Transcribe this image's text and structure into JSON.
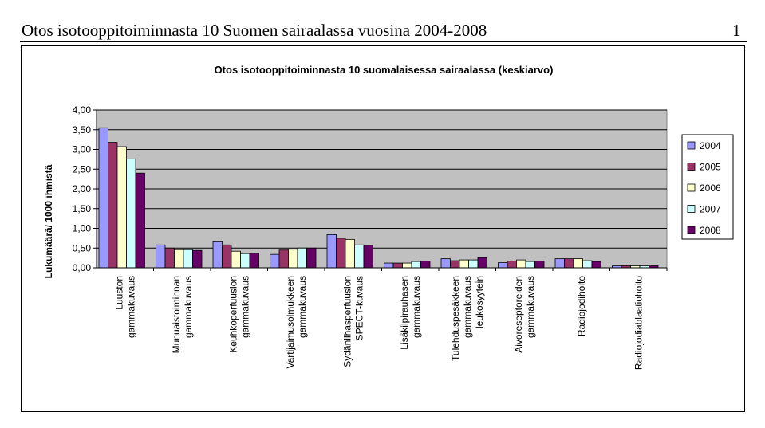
{
  "document": {
    "title": "Otos isotooppitoiminnasta 10 Suomen sairaalassa vuosina 2004-2008",
    "page_number": "1"
  },
  "chart_data": {
    "type": "bar",
    "title": "Otos isotooppitoiminnasta 10 suomalaisessa sairaalassa (keskiarvo)",
    "xlabel": "",
    "ylabel": "Lukumäärä/ 1000 ihmistä",
    "ylim": [
      0,
      4
    ],
    "yticks": [
      "0,00",
      "0,50",
      "1,00",
      "1,50",
      "2,00",
      "2,50",
      "3,00",
      "3,50",
      "4,00"
    ],
    "grid": true,
    "legend_position": "right",
    "plot_background": "#c0c0c0",
    "categories": [
      [
        "Luuston",
        "gammakuvaus"
      ],
      [
        "Munuaistoiminnan",
        "gammakuvaus"
      ],
      [
        "Keuhkoperfuusion",
        "gammakuvaus"
      ],
      [
        "Vartijaimusolmukkeen",
        "gammakuvaus"
      ],
      [
        "Sydänlihasperfuusion",
        "SPECT-kuvaus"
      ],
      [
        "Lisäkilpirauhasen",
        "gammakuvaus"
      ],
      [
        "Tulehduspesäkkeen",
        "gammakuvaus",
        "leukosyytein"
      ],
      [
        "Aivoreseptoreiden",
        "gammakuvaus"
      ],
      [
        "Radiojodihoito"
      ],
      [
        "Radiojodiablaatiohoito"
      ]
    ],
    "series": [
      {
        "name": "2004",
        "color": "#9999ff",
        "values": [
          3.55,
          0.58,
          0.66,
          0.34,
          0.84,
          0.12,
          0.23,
          0.13,
          0.23,
          0.05
        ]
      },
      {
        "name": "2005",
        "color": "#993366",
        "values": [
          3.18,
          0.5,
          0.58,
          0.45,
          0.75,
          0.12,
          0.18,
          0.17,
          0.23,
          0.05
        ]
      },
      {
        "name": "2006",
        "color": "#ffffcc",
        "values": [
          3.07,
          0.46,
          0.42,
          0.47,
          0.72,
          0.12,
          0.2,
          0.2,
          0.23,
          0.05
        ]
      },
      {
        "name": "2007",
        "color": "#ccffff",
        "values": [
          2.76,
          0.46,
          0.36,
          0.5,
          0.58,
          0.16,
          0.2,
          0.16,
          0.18,
          0.05
        ]
      },
      {
        "name": "2008",
        "color": "#660066",
        "values": [
          2.4,
          0.44,
          0.37,
          0.5,
          0.57,
          0.17,
          0.26,
          0.17,
          0.16,
          0.05
        ]
      }
    ]
  }
}
